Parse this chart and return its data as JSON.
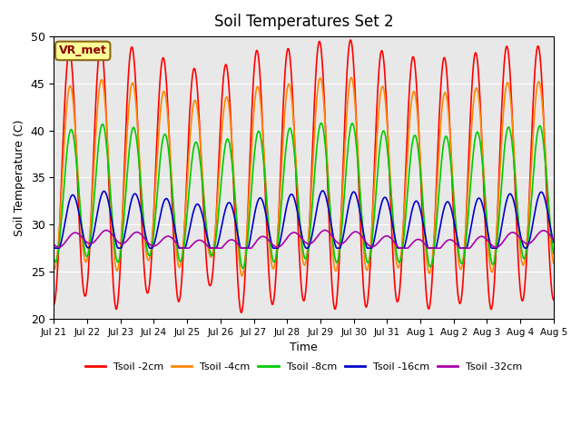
{
  "title": "Soil Temperatures Set 2",
  "xlabel": "Time",
  "ylabel": "Soil Temperature (C)",
  "ylim": [
    20,
    50
  ],
  "n_days": 16,
  "background_color": "#e8e8e8",
  "annotation_text": "VR_met",
  "annotation_bg": "#ffff99",
  "annotation_border": "#8B6914",
  "series": [
    {
      "label": "Tsoil -2cm",
      "color": "#ff0000",
      "depth_factor": 1.0,
      "phase": 0.0,
      "base": 35.0,
      "min_base": 13.0
    },
    {
      "label": "Tsoil -4cm",
      "color": "#ff8800",
      "depth_factor": 0.72,
      "phase": 0.15,
      "base": 35.0,
      "min_base": 19.0
    },
    {
      "label": "Tsoil -8cm",
      "color": "#00cc00",
      "depth_factor": 0.52,
      "phase": 0.35,
      "base": 33.0,
      "min_base": 24.0
    },
    {
      "label": "Tsoil -16cm",
      "color": "#0000cc",
      "depth_factor": 0.22,
      "phase": 0.65,
      "base": 30.0,
      "min_base": 27.5
    },
    {
      "label": "Tsoil -32cm",
      "color": "#aa00aa",
      "depth_factor": 0.05,
      "phase": 1.1,
      "base": 28.2,
      "min_base": 27.5
    }
  ],
  "tick_labels": [
    "Jul 21",
    "Jul 22",
    "Jul 23",
    "Jul 24",
    "Jul 25",
    "Jul 26",
    "Jul 27",
    "Jul 28",
    "Jul 29",
    "Jul 30",
    "Jul 31",
    "Aug 1",
    "Aug 2",
    "Aug 3",
    "Aug 4",
    "Aug 5"
  ],
  "yticks": [
    20,
    25,
    30,
    35,
    40,
    45,
    50
  ],
  "line_width": 1.2
}
